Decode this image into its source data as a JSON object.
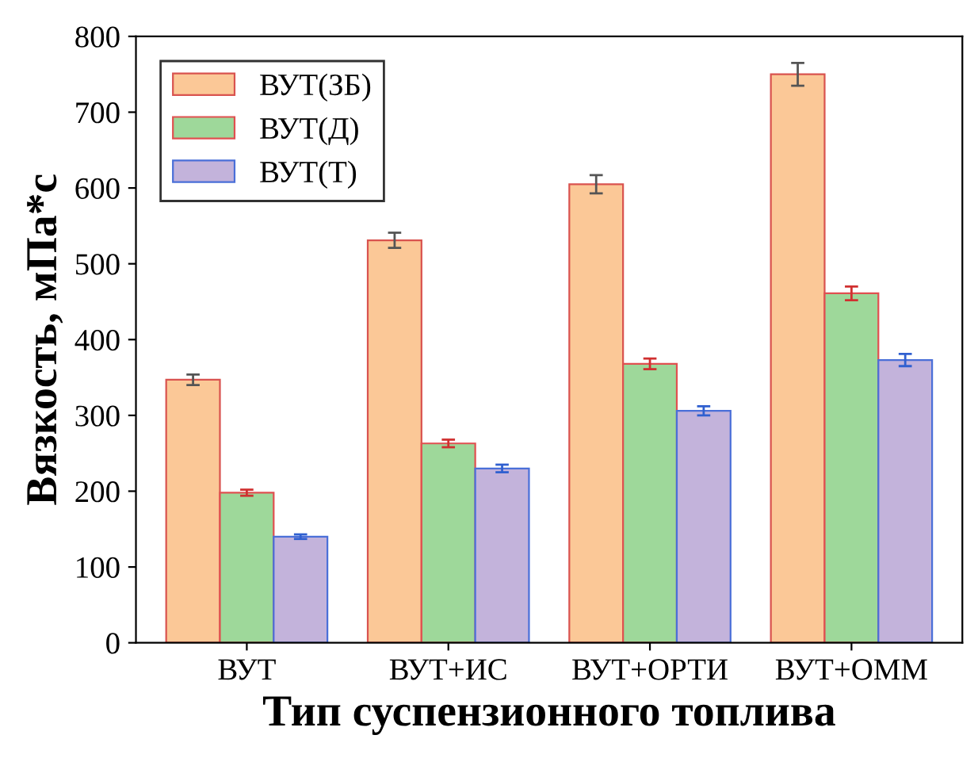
{
  "chart_data": {
    "type": "bar",
    "xlabel": "Тип суспензионного топлива",
    "ylabel": "Вязкость, мПа*с",
    "categories": [
      "ВУТ",
      "ВУТ+ИС",
      "ВУТ+ОРТИ",
      "ВУТ+ОММ"
    ],
    "series": [
      {
        "name": "ВУТ(ЗБ)",
        "color": "#fbc897",
        "values": [
          347,
          531,
          605,
          750
        ],
        "errors": [
          7,
          10,
          12,
          15
        ]
      },
      {
        "name": "ВУТ(Д)",
        "color": "#9ed89a",
        "values": [
          198,
          263,
          368,
          461
        ],
        "errors": [
          4,
          5,
          7,
          9
        ]
      },
      {
        "name": "ВУТ(Т)",
        "color": "#c3b3db",
        "values": [
          140,
          230,
          306,
          373
        ],
        "errors": [
          3,
          5,
          6,
          8
        ]
      }
    ],
    "ylim": [
      0,
      800
    ],
    "yticks": [
      0,
      100,
      200,
      300,
      400,
      500,
      600,
      700,
      800
    ],
    "legend": "top left",
    "grid": false
  }
}
